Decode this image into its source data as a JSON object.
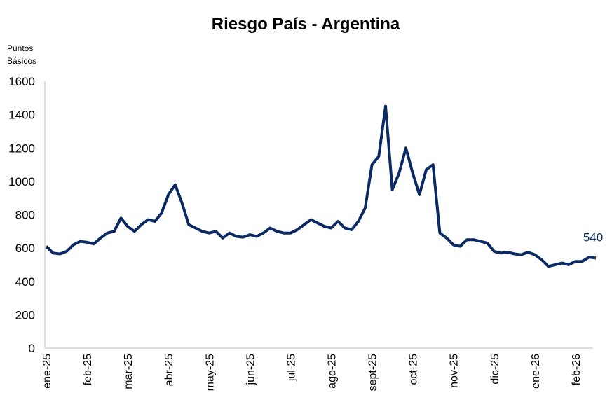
{
  "chart_data": {
    "type": "line",
    "title": "Riesgo País - Argentina",
    "y_label": [
      "Puntos",
      "Básicos"
    ],
    "categories": [
      "ene-25",
      null,
      null,
      null,
      null,
      null,
      "feb-25",
      null,
      null,
      null,
      null,
      null,
      "mar-25",
      null,
      null,
      null,
      null,
      null,
      "abr-25",
      null,
      null,
      null,
      null,
      null,
      "may-25",
      null,
      null,
      null,
      null,
      null,
      "jun-25",
      null,
      null,
      null,
      null,
      null,
      "jul-25",
      null,
      null,
      null,
      null,
      null,
      "ago-25",
      null,
      null,
      null,
      null,
      null,
      "sept-25",
      null,
      null,
      null,
      null,
      null,
      "oct-25",
      null,
      null,
      null,
      null,
      null,
      "nov-25",
      null,
      null,
      null,
      null,
      null,
      "dic-25",
      null,
      null,
      null,
      null,
      null,
      "ene-26",
      null,
      null,
      null,
      null,
      null,
      "feb-26",
      null,
      null,
      null
    ],
    "series": [
      {
        "color": "#0b2a63",
        "values": [
          610,
          570,
          565,
          580,
          620,
          640,
          635,
          625,
          660,
          690,
          700,
          780,
          730,
          700,
          740,
          770,
          760,
          810,
          920,
          980,
          870,
          740,
          720,
          700,
          690,
          700,
          660,
          690,
          670,
          665,
          680,
          670,
          690,
          720,
          700,
          690,
          690,
          710,
          740,
          770,
          750,
          730,
          720,
          760,
          720,
          710,
          760,
          840,
          1100,
          1150,
          1450,
          950,
          1050,
          1200,
          1050,
          920,
          1070,
          1100,
          690,
          660,
          620,
          610,
          650,
          650,
          640,
          630,
          580,
          570,
          575,
          565,
          560,
          575,
          560,
          530,
          490,
          500,
          510,
          500,
          520,
          520,
          545,
          540
        ]
      }
    ],
    "ylim": [
      0,
      1600
    ],
    "yticks": [
      0,
      200,
      400,
      600,
      800,
      1000,
      1200,
      1400,
      1600
    ],
    "grid": false
  }
}
